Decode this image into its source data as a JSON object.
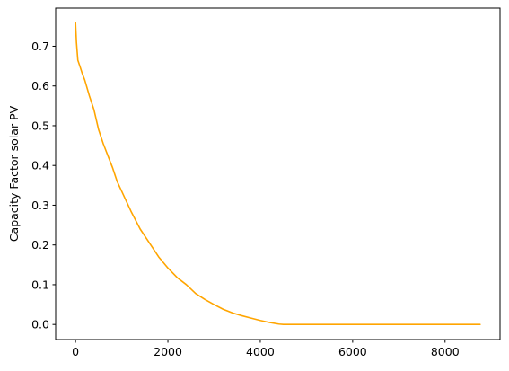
{
  "chart_data": {
    "type": "line",
    "title": "",
    "xlabel": "",
    "ylabel": "Capacity Factor solar PV",
    "xlim": [
      -430,
      9190
    ],
    "ylim": [
      -0.038,
      0.796
    ],
    "xticks": [
      0,
      2000,
      4000,
      6000,
      8000
    ],
    "xtick_labels": [
      "0",
      "2000",
      "4000",
      "6000",
      "8000"
    ],
    "yticks": [
      0.0,
      0.1,
      0.2,
      0.3,
      0.4,
      0.5,
      0.6,
      0.7
    ],
    "ytick_labels": [
      "0.0",
      "0.1",
      "0.2",
      "0.3",
      "0.4",
      "0.5",
      "0.6",
      "0.7"
    ],
    "grid": false,
    "legend": "none",
    "series": [
      {
        "color": "#ffa500",
        "x": [
          0,
          20,
          50,
          100,
          150,
          200,
          300,
          400,
          500,
          600,
          700,
          800,
          900,
          1000,
          1200,
          1400,
          1600,
          1800,
          2000,
          2200,
          2400,
          2600,
          2800,
          3000,
          3200,
          3400,
          3600,
          3800,
          4000,
          4200,
          4400,
          4500,
          5000,
          6000,
          7000,
          8000,
          8759
        ],
        "y": [
          0.76,
          0.71,
          0.665,
          0.648,
          0.63,
          0.615,
          0.575,
          0.54,
          0.49,
          0.455,
          0.425,
          0.395,
          0.36,
          0.335,
          0.285,
          0.24,
          0.205,
          0.17,
          0.142,
          0.118,
          0.1,
          0.078,
          0.063,
          0.05,
          0.038,
          0.029,
          0.022,
          0.016,
          0.01,
          0.005,
          0.001,
          0.0,
          0.0,
          0.0,
          0.0,
          0.0,
          0.0
        ]
      }
    ]
  }
}
